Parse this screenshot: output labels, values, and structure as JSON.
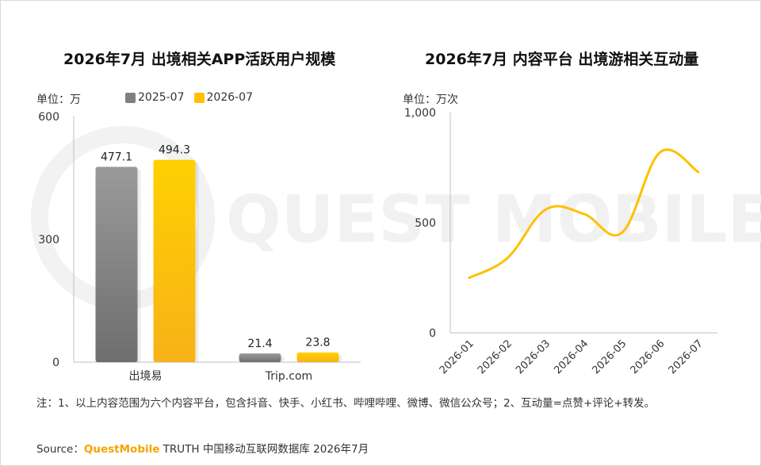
{
  "watermark": "QUEST MOBILE",
  "footer": {
    "note": "注：1、以上内容范围为六个内容平台，包含抖音、快手、小红书、哔哩哔哩、微博、微信公众号；2、互动量=点赞+评论+转发。",
    "source_label": "Source：",
    "source_brand": "QuestMobile",
    "source_rest": " TRUTH 中国移动互联网数据库 2026年7月"
  },
  "chart_data": [
    {
      "type": "bar",
      "title": "2026年7月 出境相关APP活跃用户规模",
      "unit_label": "单位：万",
      "categories": [
        "出境易",
        "Trip.com"
      ],
      "series": [
        {
          "name": "2025-07",
          "values": [
            477.1,
            21.4
          ],
          "color": "#808080"
        },
        {
          "name": "2026-07",
          "values": [
            494.3,
            23.8
          ],
          "color": "#ffc000"
        }
      ],
      "ylim": [
        0,
        600
      ],
      "yticks": [
        "0",
        "300",
        "600"
      ],
      "legend_position": "top"
    },
    {
      "type": "line",
      "title": "2026年7月 内容平台 出境游相关互动量",
      "unit_label": "单位：万次",
      "x": [
        "2026-01",
        "2026-02",
        "2026-03",
        "2026-04",
        "2026-05",
        "2026-06",
        "2026-07"
      ],
      "series": [
        {
          "values": [
            250,
            340,
            560,
            540,
            455,
            820,
            730
          ],
          "color": "#ffc000"
        }
      ],
      "ylim": [
        0,
        1000
      ],
      "yticks": [
        "0",
        "500",
        "1,000"
      ]
    }
  ]
}
